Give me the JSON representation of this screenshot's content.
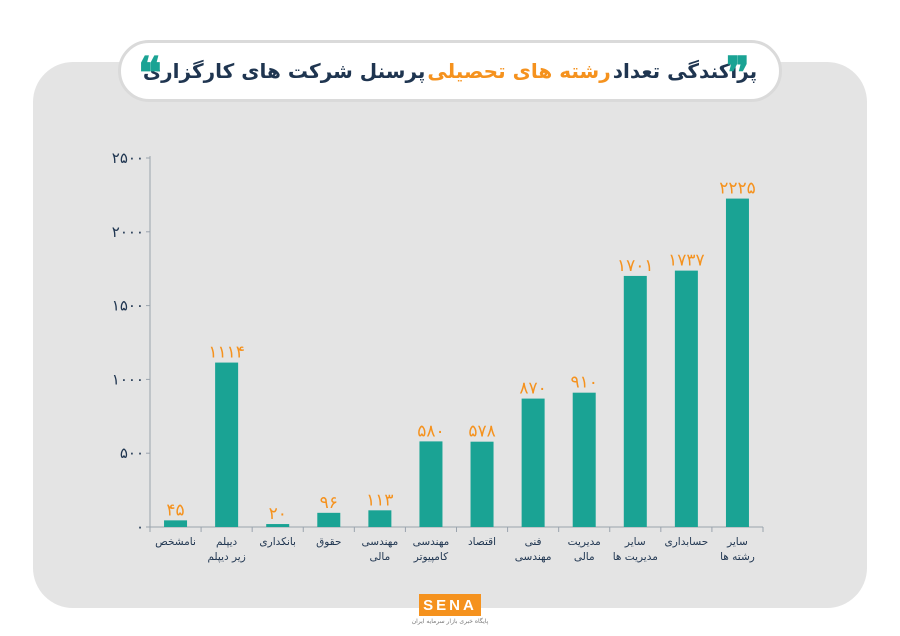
{
  "title": {
    "part1": "پراکندگی تعداد",
    "highlight": "رشته های تحصیلی",
    "part2": "پرسنل شرکت های کارگزاری"
  },
  "colors": {
    "bar": "#1aa394",
    "value_label": "#f5921e",
    "axis_text": "#1f3550",
    "title_highlight": "#f5921e"
  },
  "chart_data": {
    "type": "bar",
    "categories": [
      "نامشخص",
      "دیپلم زیر دیپلم",
      "بانکداری",
      "حقوق",
      "مهندسی مالی",
      "مهندسی کامپیوتر",
      "اقتصاد",
      "فنی مهندسی",
      "مدیریت مالی",
      "سایر مدیریت ها",
      "حسابداری",
      "سایر رشته ها"
    ],
    "category_lines": [
      [
        "نامشخص"
      ],
      [
        "دیپلم",
        "زیر دیپلم"
      ],
      [
        "بانکداری"
      ],
      [
        "حقوق"
      ],
      [
        "مهندسی",
        "مالی"
      ],
      [
        "مهندسی",
        "کامپیوتر"
      ],
      [
        "اقتصاد"
      ],
      [
        "فنی",
        "مهندسی"
      ],
      [
        "مدیریت",
        "مالی"
      ],
      [
        "سایر",
        "مدیریت ها"
      ],
      [
        "حسابداری"
      ],
      [
        "سایر",
        "رشته ها"
      ]
    ],
    "values": [
      45,
      1114,
      20,
      96,
      113,
      580,
      578,
      870,
      910,
      1701,
      1737,
      2225
    ],
    "value_labels": [
      "۴۵",
      "۱۱۱۴",
      "۲۰",
      "۹۶",
      "۱۱۳",
      "۵۸۰",
      "۵۷۸",
      "۸۷۰",
      "۹۱۰",
      "۱۷۰۱",
      "۱۷۳۷",
      "۲۲۲۵"
    ],
    "yticks": [
      0,
      500,
      1000,
      1500,
      2000,
      2500
    ],
    "ytick_labels": [
      "۰",
      "۵۰۰",
      "۱۰۰۰",
      "۱۵۰۰",
      "۲۰۰۰",
      "۲۵۰۰"
    ],
    "ylim": [
      0,
      2500
    ],
    "grid": false
  },
  "logo": {
    "text": "SENA",
    "subtitle": "پایگاه خبری بازار سرمایه ایران"
  }
}
